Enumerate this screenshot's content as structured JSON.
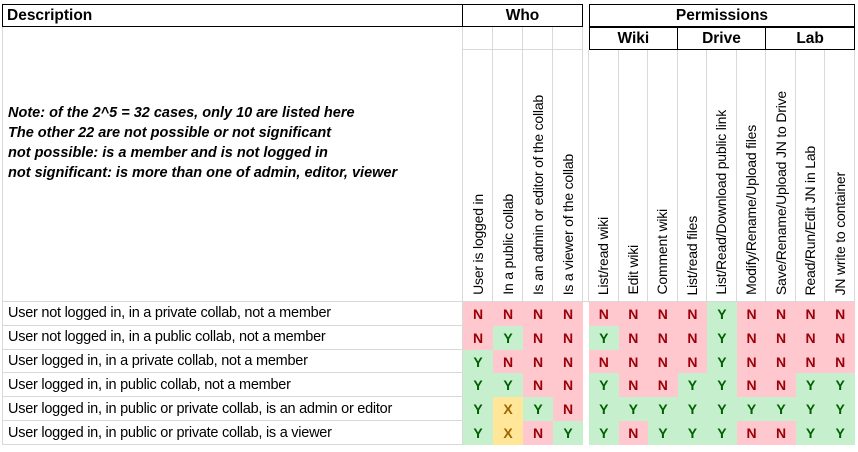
{
  "table": {
    "corner_header": "Description",
    "who_header": "Who",
    "permissions_header": "Permissions",
    "note_lines": [
      "Note: of the 2^5 = 32 cases, only 10 are listed here",
      "The other 22 are not possible or not significant",
      "not possible: is a member and is not logged in",
      "not significant: is more than one of admin, editor, viewer"
    ],
    "who_columns": [
      "User is logged in",
      "In a public collab",
      "Is an admin or editor of the collab",
      "Is a viewer of the collab"
    ],
    "permission_groups": [
      {
        "label": "Wiki",
        "columns": [
          "List/read wiki",
          "Edit wiki",
          "Comment wiki"
        ]
      },
      {
        "label": "Drive",
        "columns": [
          "List/read files",
          "List/Read/Download public link",
          "Modify/Rename/Upload files"
        ]
      },
      {
        "label": "Lab",
        "columns": [
          "Save/Rename/Upload JN to Drive",
          "Read/Run/Edit JN in Lab",
          "JN write to container"
        ]
      }
    ],
    "value_styles": {
      "Y": {
        "fill": "#c6efce",
        "text": "#006100"
      },
      "N": {
        "fill": "#ffc7ce",
        "text": "#9c0006"
      },
      "X": {
        "fill": "#ffe699",
        "text": "#9c6500"
      }
    },
    "rows": [
      {
        "description": "User not logged in, in a private collab, not a member",
        "who": [
          "N",
          "N",
          "N",
          "N"
        ],
        "permissions": [
          "N",
          "N",
          "N",
          "N",
          "Y",
          "N",
          "N",
          "N",
          "N"
        ]
      },
      {
        "description": "User not logged in, in a public collab, not a member",
        "who": [
          "N",
          "Y",
          "N",
          "N"
        ],
        "permissions": [
          "Y",
          "N",
          "N",
          "N",
          "Y",
          "N",
          "N",
          "N",
          "N"
        ]
      },
      {
        "description": "User logged in, in a private collab, not a member",
        "who": [
          "Y",
          "N",
          "N",
          "N"
        ],
        "permissions": [
          "N",
          "N",
          "N",
          "N",
          "Y",
          "N",
          "N",
          "N",
          "N"
        ]
      },
      {
        "description": "User logged in, in public collab, not a member",
        "who": [
          "Y",
          "Y",
          "N",
          "N"
        ],
        "permissions": [
          "Y",
          "N",
          "N",
          "Y",
          "Y",
          "N",
          "N",
          "Y",
          "Y"
        ]
      },
      {
        "description": "User logged in, in public or private collab, is an admin or editor",
        "who": [
          "Y",
          "X",
          "Y",
          "N"
        ],
        "permissions": [
          "Y",
          "Y",
          "Y",
          "Y",
          "Y",
          "Y",
          "Y",
          "Y",
          "Y"
        ]
      },
      {
        "description": "User logged in, in public or private collab, is a viewer",
        "who": [
          "Y",
          "X",
          "N",
          "Y"
        ],
        "permissions": [
          "Y",
          "N",
          "Y",
          "Y",
          "Y",
          "N",
          "N",
          "Y",
          "Y"
        ]
      }
    ]
  }
}
